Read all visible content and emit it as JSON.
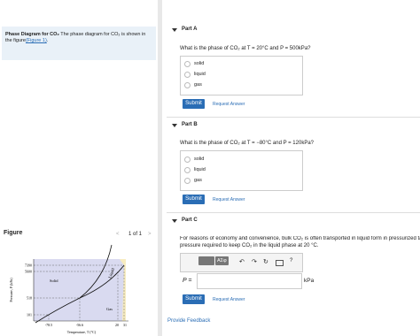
{
  "left": {
    "intro": {
      "title": "Phase Diagram for CO₂",
      "text": "The phase diagram for CO₂ is shown in the figure",
      "link": "(Figure 1)",
      "end": "."
    },
    "figure": {
      "heading": "Figure",
      "prev": "<",
      "pager": "1 of 1",
      "next": ">",
      "diagram": {
        "y_axis": "Pressure, P (kPa)",
        "x_axis": "Temperature, T (°C)",
        "yticks": [
          "7390",
          "5600",
          "518",
          "101"
        ],
        "xticks": [
          "-78.5",
          "-56.6",
          "20",
          "31"
        ],
        "regions": [
          "Solid",
          "Liquid",
          "Gas"
        ]
      }
    }
  },
  "parts": [
    {
      "title": "Part A",
      "question": "What is the phase of CO₂ at T = 20°C and P = 500kPa?",
      "options": [
        "solid",
        "liquid",
        "gas"
      ],
      "submit": "Submit",
      "request": "Request Answer"
    },
    {
      "title": "Part B",
      "question": "What is the phase of CO₂ at T = −80°C and P = 120kPa?",
      "options": [
        "solid",
        "liquid",
        "gas"
      ],
      "submit": "Submit",
      "request": "Request Answer"
    },
    {
      "title": "Part C",
      "question": "For reasons of economy and convenience, bulk CO₂ is often transported in liquid form in pressurized tanks. Using the",
      "question2": "pressure required to keep CO₂ in the liquid phase at 20 °C.",
      "toolbar": [
        "ΑΣφ",
        "?"
      ],
      "input_label": "P =",
      "unit": "kPa",
      "submit": "Submit",
      "request": "Request Answer"
    }
  ],
  "feedback": "Provide Feedback"
}
